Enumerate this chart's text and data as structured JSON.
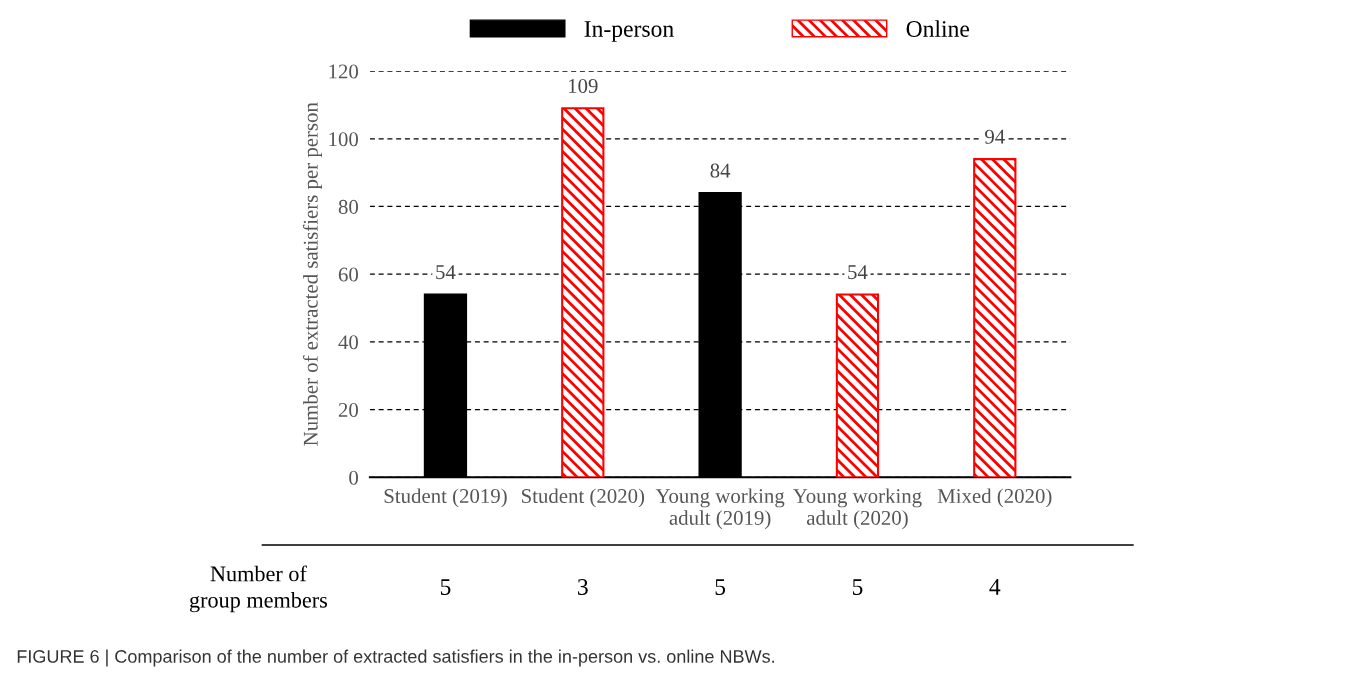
{
  "chart_data": {
    "type": "bar",
    "ylabel": "Number of extracted satisfiers per person",
    "categories": [
      "Student (2019)",
      "Student (2020)",
      "Young working\nadult (2019)",
      "Young working\nadult (2020)",
      "Mixed (2020)"
    ],
    "series": [
      {
        "name": "In-person",
        "color": "#000000",
        "values": [
          54,
          null,
          84,
          null,
          null
        ]
      },
      {
        "name": "Online",
        "color": "#ff0000",
        "values": [
          null,
          109,
          null,
          54,
          94
        ]
      }
    ],
    "ylim": [
      0,
      120
    ],
    "yticks": [
      0,
      20,
      40,
      60,
      80,
      100,
      120
    ],
    "grid": "y",
    "legend": "top",
    "data_labels": true,
    "annotations": [
      "Number of\ngroup members",
      "5",
      "3",
      "5",
      "5",
      "4",
      "FIGURE 6 | Comparison of the number of extracted satisfiers in the in-person vs. online NBWs."
    ]
  }
}
